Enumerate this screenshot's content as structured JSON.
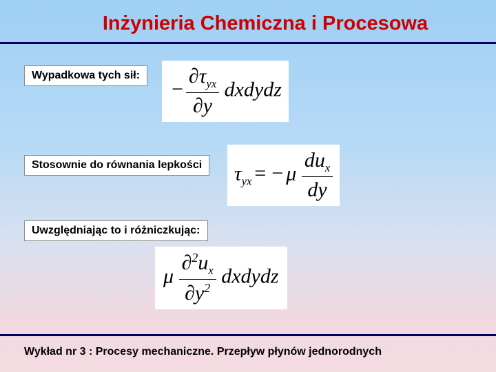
{
  "title": "Inżynieria Chemiczna i Procesowa",
  "labels": {
    "l1": "Wypadkowa tych sił:",
    "l2": "Stosownie do równania lepkości",
    "l3": "Uwzględniając to i różniczkując:"
  },
  "footer": "Wykład nr 3  : Procesy mechaniczne.  Przepływ płynów jednorodnych",
  "colors": {
    "title": "#cc0000",
    "rule": "#000066",
    "bg_top": "#9ecff4",
    "bg_bottom": "#f5dce3"
  },
  "equations": {
    "eq1": {
      "type": "formula",
      "latex": "-\\frac{\\partial \\tau_{yx}}{\\partial y}\\,dx\\,dy\\,dz"
    },
    "eq2": {
      "type": "formula",
      "latex": "\\tau_{yx} = -\\mu \\frac{du_x}{dy}"
    },
    "eq3": {
      "type": "formula",
      "latex": "\\mu \\frac{\\partial^2 u_x}{\\partial y^2}\\,dx\\,dy\\,dz"
    }
  }
}
